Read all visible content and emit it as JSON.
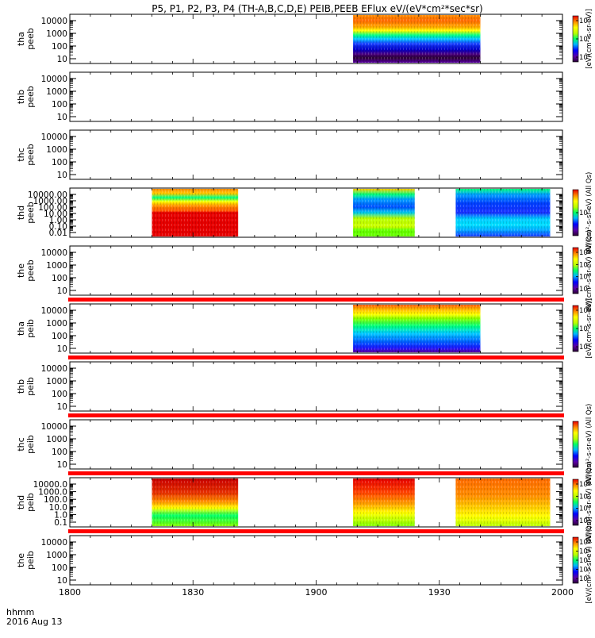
{
  "chart_data": {
    "type": "heatmap",
    "title": "P5, P1, P2, P3, P4 (TH-A,B,C,D,E) PEIB,PEEB EFlux eV/(eV*cm²*sec*sr)",
    "x_ticks": [
      "1800",
      "1830",
      "1900",
      "1930",
      "2000"
    ],
    "x_time_range": [
      "18:00",
      "20:00"
    ],
    "x_axis_label": "hhmm",
    "x_axis_date": "2016 Aug 13",
    "panels": [
      {
        "id": "tha-peeb",
        "label1": "tha",
        "label2": "peeb",
        "y_ticks": [
          "10",
          "100",
          "1000",
          "10000"
        ],
        "y_scale": "log",
        "red_bar_below": false,
        "blocks": [
          {
            "t_start": "19:09",
            "t_end": "19:40",
            "pattern": "peeb_a"
          }
        ],
        "colorbar": {
          "ticks": [
            "10⁵",
            "10⁶",
            "10⁷"
          ],
          "label": "[eV/(cm²-s-sr-eV)]"
        }
      },
      {
        "id": "thb-peeb",
        "label1": "thb",
        "label2": "peeb",
        "y_ticks": [
          "10",
          "100",
          "1000",
          "10000"
        ],
        "y_scale": "log",
        "red_bar_below": false,
        "blocks": [],
        "colorbar": null
      },
      {
        "id": "thc-peeb",
        "label1": "thc",
        "label2": "peeb",
        "y_ticks": [
          "10",
          "100",
          "1000",
          "10000"
        ],
        "y_scale": "log",
        "red_bar_below": false,
        "blocks": [],
        "colorbar": null
      },
      {
        "id": "thd-peeb",
        "label1": "thd",
        "label2": "peeb",
        "y_ticks": [
          "0.01",
          "0.10",
          "1.00",
          "10.00",
          "100.00",
          "1000.00",
          "10000.00"
        ],
        "y_scale": "log",
        "red_bar_below": false,
        "blocks": [
          {
            "t_start": "18:20",
            "t_end": "18:41",
            "pattern": "peeb_d1"
          },
          {
            "t_start": "19:09",
            "t_end": "19:24",
            "pattern": "peeb_d2"
          },
          {
            "t_start": "19:34",
            "t_end": "19:57",
            "pattern": "peeb_d3"
          }
        ],
        "colorbar": {
          "ticks": [
            "10⁷"
          ],
          "label": "eV/(cm²-s-sr-eV) (All Qs)"
        }
      },
      {
        "id": "the-peeb",
        "label1": "the",
        "label2": "peeb",
        "y_ticks": [
          "10",
          "100",
          "1000",
          "10000"
        ],
        "y_scale": "log",
        "red_bar_below": true,
        "blocks": [],
        "colorbar": {
          "ticks": [
            "10⁵",
            "10⁶",
            "10⁷",
            "10⁸"
          ],
          "label": "eV/(cm²-s-sr-eV) (All Qs)"
        }
      },
      {
        "id": "tha-peib",
        "label1": "tha",
        "label2": "peib",
        "y_ticks": [
          "10",
          "100",
          "1000",
          "10000"
        ],
        "y_scale": "log",
        "red_bar_below": true,
        "blocks": [
          {
            "t_start": "19:09",
            "t_end": "19:40",
            "pattern": "peib_a"
          }
        ],
        "colorbar": {
          "ticks": [
            "10⁴",
            "10⁵",
            "10⁶"
          ],
          "label": "[eV/(cm²-s-sr-eV)]"
        }
      },
      {
        "id": "thb-peib",
        "label1": "thb",
        "label2": "peib",
        "y_ticks": [
          "10",
          "100",
          "1000",
          "10000"
        ],
        "y_scale": "log",
        "red_bar_below": true,
        "blocks": [],
        "colorbar": null
      },
      {
        "id": "thc-peib",
        "label1": "thc",
        "label2": "peib",
        "y_ticks": [
          "10",
          "100",
          "1000",
          "10000"
        ],
        "y_scale": "log",
        "red_bar_below": true,
        "blocks": [],
        "colorbar": {
          "ticks": [],
          "label": "eV/(cm²-s-sr-eV) (All Qs)"
        }
      },
      {
        "id": "thd-peib",
        "label1": "thd",
        "label2": "peib",
        "y_ticks": [
          "0.1",
          "1.0",
          "10.0",
          "100.0",
          "1000.0",
          "10000.0"
        ],
        "y_scale": "log",
        "red_bar_below": true,
        "blocks": [
          {
            "t_start": "18:20",
            "t_end": "18:41",
            "pattern": "peib_d1"
          },
          {
            "t_start": "19:09",
            "t_end": "19:24",
            "pattern": "peib_d2"
          },
          {
            "t_start": "19:34",
            "t_end": "19:57",
            "pattern": "peib_d3"
          }
        ],
        "colorbar": {
          "ticks": [
            "10³",
            "10⁴",
            "10⁵",
            "10⁶"
          ],
          "label": "eV/(cm²-s-sr-eV) (All Qs)"
        }
      },
      {
        "id": "the-peib",
        "label1": "the",
        "label2": "peib",
        "y_ticks": [
          "10",
          "100",
          "1000",
          "10000"
        ],
        "y_scale": "log",
        "red_bar_below": false,
        "blocks": [],
        "colorbar": {
          "ticks": [
            "10³",
            "10⁴",
            "10⁵",
            "10⁶",
            "10⁷"
          ],
          "label": "[eV/(cm²-s-sr-eV) (All Qs)]"
        }
      }
    ],
    "colormap": "rainbow (purple-blue-cyan-green-yellow-orange-red)",
    "accent_red": "#ff0000"
  }
}
